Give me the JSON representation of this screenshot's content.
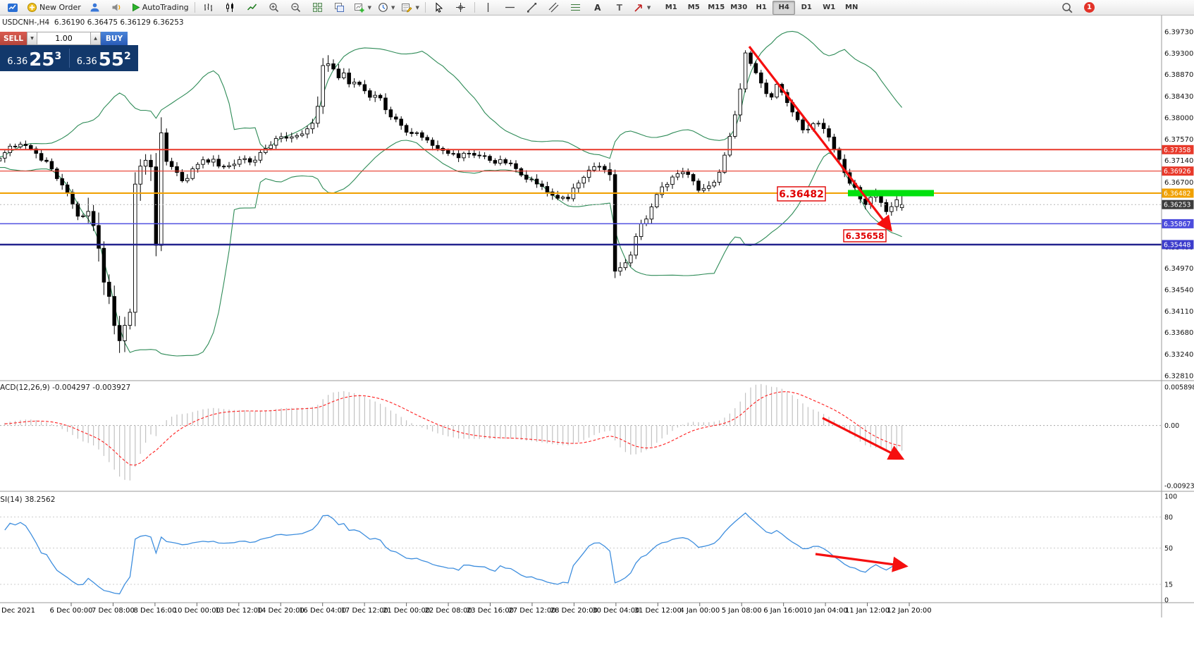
{
  "toolbar": {
    "new_order": "New Order",
    "autotrading": "AutoTrading",
    "timeframes": [
      "M1",
      "M5",
      "M15",
      "M30",
      "H1",
      "H4",
      "D1",
      "W1",
      "MN"
    ],
    "active_timeframe": "H4",
    "notification_badge": "1"
  },
  "chart_header": {
    "symbol_ohlc": "USDCNH-,H4  6.36190 6.36475 6.36129 6.36253"
  },
  "trade_panel": {
    "sell_label": "SELL",
    "buy_label": "BUY",
    "volume": "1.00",
    "sell_price": {
      "small": "6.36",
      "big": "25",
      "sup": "3"
    },
    "buy_price": {
      "small": "6.36",
      "big": "55",
      "sup": "2"
    }
  },
  "price_axis": {
    "ticks": [
      "6.39730",
      "6.39300",
      "6.38870",
      "6.38430",
      "6.38000",
      "6.37570",
      "6.37140",
      "6.36700",
      "6.36270",
      "6.35830",
      "6.35400",
      "6.34970",
      "6.34540",
      "6.34110",
      "6.33680",
      "6.33240",
      "6.32810"
    ],
    "tags": [
      {
        "label": "6.37358",
        "price": 6.37358,
        "bg": "#e8392a",
        "line_color": "#e8392a",
        "line_width": 2,
        "line_dash": ""
      },
      {
        "label": "6.36926",
        "price": 6.36926,
        "bg": "#e8392a",
        "line_color": "#e8392a",
        "line_width": 1.2,
        "line_dash": ""
      },
      {
        "label": "6.36482",
        "price": 6.36482,
        "bg": "#f0a000",
        "line_color": "#f0a000",
        "line_width": 2,
        "line_dash": ""
      },
      {
        "label": "6.36253",
        "price": 6.36253,
        "bg": "#3c3c3c",
        "line_color": "#b9b9b9",
        "line_width": 1,
        "line_dash": "2 3"
      },
      {
        "label": "6.35867",
        "price": 6.35867,
        "bg": "#4c4cdd",
        "line_color": "#5050e0",
        "line_width": 1.5,
        "line_dash": ""
      },
      {
        "label": "6.35448",
        "price": 6.35448,
        "bg": "#3c3ccc",
        "line_color": "#23238f",
        "line_width": 2.5,
        "line_dash": ""
      }
    ]
  },
  "macd_panel": {
    "label": "MACD(12,26,9) -0.004297 -0.003927",
    "axis": [
      "0.005898",
      "0.00",
      "-0.009232"
    ],
    "axis_values": [
      0.005898,
      0,
      -0.009232
    ]
  },
  "rsi_panel": {
    "label": "RSI(14) 38.2562",
    "axis": [
      "100",
      "80",
      "50",
      "15",
      "0"
    ],
    "axis_values": [
      100,
      80,
      50,
      15,
      0
    ]
  },
  "time_axis": {
    "labels": [
      "Dec 2021",
      "6 Dec 00:00",
      "7 Dec 08:00",
      "8 Dec 16:00",
      "10 Dec 00:00",
      "13 Dec 12:00",
      "14 Dec 20:00",
      "16 Dec 04:00",
      "17 Dec 12:00",
      "21 Dec 00:00",
      "22 Dec 08:00",
      "23 Dec 16:00",
      "27 Dec 12:00",
      "28 Dec 20:00",
      "30 Dec 04:00",
      "31 Dec 12:00",
      "4 Jan 00:00",
      "5 Jan 08:00",
      "6 Jan 16:00",
      "10 Jan 04:00",
      "11 Jan 12:00",
      "12 Jan 20:00"
    ]
  },
  "annotations": {
    "price_note_1": "6.36482",
    "price_note_2": "6.35658",
    "highlight_color": "#00e10e",
    "arrow_color": "#f50f0f",
    "note_color": "#e00000"
  },
  "chart_data": {
    "type": "candlestick+indicators",
    "symbol": "USDCNH-",
    "timeframe": "H4",
    "ohlc_current": {
      "open": 6.3619,
      "high": 6.36475,
      "low": 6.36129,
      "close": 6.36253
    },
    "current_bid": 6.36253,
    "levels": [
      6.37358,
      6.36926,
      6.36482,
      6.35867,
      6.35448
    ],
    "price_range_shown": [
      6.3281,
      6.3973
    ],
    "bollinger": {
      "period": 20,
      "deviation": 2
    },
    "macd": {
      "fast": 12,
      "slow": 26,
      "signal": 9,
      "current_main": -0.004297,
      "current_signal": -0.003927
    },
    "rsi": {
      "period": 14,
      "current": 38.2562
    },
    "colors": {
      "bollinger": "#2e8b57",
      "macd_histogram": "#c2c2c2",
      "macd_signal": "#ff1f1f",
      "rsi": "#3e8ede",
      "bull": "#ffffff",
      "bear": "#000000",
      "wick": "#000000"
    },
    "price_path_keyframes": [
      [
        -600,
        6.369
      ],
      [
        -480,
        6.3712
      ],
      [
        -360,
        6.3695
      ],
      [
        -240,
        6.3715
      ],
      [
        -150,
        6.37
      ],
      [
        -60,
        6.3712
      ],
      [
        0,
        6.3715
      ],
      [
        14,
        6.3738
      ],
      [
        28,
        6.3752
      ],
      [
        42,
        6.3735
      ],
      [
        56,
        6.3722
      ],
      [
        70,
        6.3705
      ],
      [
        84,
        6.3672
      ],
      [
        98,
        6.364
      ],
      [
        110,
        6.3605
      ],
      [
        120,
        6.3598
      ],
      [
        128,
        6.3618
      ],
      [
        136,
        6.3565
      ],
      [
        145,
        6.3488
      ],
      [
        153,
        6.3445
      ],
      [
        160,
        6.3412
      ],
      [
        167,
        6.3338
      ],
      [
        173,
        6.3365
      ],
      [
        180,
        6.3398
      ],
      [
        188,
        6.342
      ],
      [
        193,
        6.3748
      ],
      [
        200,
        6.3692
      ],
      [
        208,
        6.3718
      ],
      [
        216,
        6.37
      ],
      [
        221,
        6.3525
      ],
      [
        226,
        6.3838
      ],
      [
        232,
        6.3705
      ],
      [
        240,
        6.3712
      ],
      [
        250,
        6.3692
      ],
      [
        262,
        6.3665
      ],
      [
        272,
        6.3698
      ],
      [
        285,
        6.3712
      ],
      [
        300,
        6.3716
      ],
      [
        315,
        6.3702
      ],
      [
        330,
        6.3706
      ],
      [
        345,
        6.3716
      ],
      [
        360,
        6.3708
      ],
      [
        375,
        6.3736
      ],
      [
        390,
        6.3755
      ],
      [
        405,
        6.376
      ],
      [
        420,
        6.3766
      ],
      [
        435,
        6.3776
      ],
      [
        448,
        6.3792
      ],
      [
        457,
        6.39
      ],
      [
        463,
        6.3922
      ],
      [
        470,
        6.3902
      ],
      [
        478,
        6.3882
      ],
      [
        487,
        6.3892
      ],
      [
        496,
        6.3866
      ],
      [
        505,
        6.3876
      ],
      [
        515,
        6.386
      ],
      [
        525,
        6.3842
      ],
      [
        535,
        6.3852
      ],
      [
        545,
        6.3822
      ],
      [
        555,
        6.3802
      ],
      [
        565,
        6.3792
      ],
      [
        575,
        6.3776
      ],
      [
        588,
        6.377
      ],
      [
        600,
        6.3762
      ],
      [
        612,
        6.3746
      ],
      [
        625,
        6.374
      ],
      [
        638,
        6.373
      ],
      [
        650,
        6.372
      ],
      [
        662,
        6.373
      ],
      [
        675,
        6.3726
      ],
      [
        688,
        6.372
      ],
      [
        700,
        6.3712
      ],
      [
        715,
        6.3712
      ],
      [
        730,
        6.37
      ],
      [
        745,
        6.3682
      ],
      [
        760,
        6.367
      ],
      [
        775,
        6.3652
      ],
      [
        790,
        6.364
      ],
      [
        805,
        6.3634
      ],
      [
        815,
        6.3662
      ],
      [
        825,
        6.3672
      ],
      [
        838,
        6.3695
      ],
      [
        850,
        6.3702
      ],
      [
        860,
        6.3695
      ],
      [
        866,
        6.369
      ],
      [
        871,
        6.3482
      ],
      [
        877,
        6.3502
      ],
      [
        883,
        6.3494
      ],
      [
        889,
        6.3512
      ],
      [
        895,
        6.3522
      ],
      [
        901,
        6.356
      ],
      [
        908,
        6.358
      ],
      [
        915,
        6.3592
      ],
      [
        922,
        6.3612
      ],
      [
        930,
        6.364
      ],
      [
        938,
        6.3656
      ],
      [
        946,
        6.3662
      ],
      [
        955,
        6.368
      ],
      [
        963,
        6.3692
      ],
      [
        972,
        6.3696
      ],
      [
        980,
        6.3682
      ],
      [
        988,
        6.3656
      ],
      [
        996,
        6.366
      ],
      [
        1004,
        6.3662
      ],
      [
        1012,
        6.3666
      ],
      [
        1020,
        6.369
      ],
      [
        1028,
        6.3722
      ],
      [
        1036,
        6.3762
      ],
      [
        1044,
        6.3812
      ],
      [
        1050,
        6.3862
      ],
      [
        1057,
        6.394
      ],
      [
        1062,
        6.3918
      ],
      [
        1068,
        6.39
      ],
      [
        1074,
        6.3882
      ],
      [
        1080,
        6.387
      ],
      [
        1087,
        6.3852
      ],
      [
        1094,
        6.3842
      ],
      [
        1100,
        6.387
      ],
      [
        1107,
        6.3852
      ],
      [
        1114,
        6.384
      ],
      [
        1121,
        6.382
      ],
      [
        1128,
        6.3802
      ],
      [
        1135,
        6.379
      ],
      [
        1142,
        6.3772
      ],
      [
        1150,
        6.3782
      ],
      [
        1157,
        6.3796
      ],
      [
        1164,
        6.3782
      ],
      [
        1171,
        6.3776
      ],
      [
        1178,
        6.3752
      ],
      [
        1185,
        6.3732
      ],
      [
        1192,
        6.3712
      ],
      [
        1199,
        6.3686
      ],
      [
        1206,
        6.367
      ],
      [
        1213,
        6.3656
      ],
      [
        1220,
        6.364
      ],
      [
        1227,
        6.362
      ],
      [
        1234,
        6.3642
      ],
      [
        1241,
        6.3652
      ],
      [
        1248,
        6.3632
      ],
      [
        1255,
        6.3616
      ],
      [
        1262,
        6.3604
      ],
      [
        1269,
        6.3636
      ],
      [
        1276,
        6.3642
      ],
      [
        1282,
        6.3625
      ]
    ],
    "volatility_zones": [
      [
        118,
        180,
        3.2
      ],
      [
        186,
        234,
        3.4
      ],
      [
        448,
        468,
        2.0
      ],
      [
        862,
        884,
        3.0
      ],
      [
        1048,
        1064,
        1.8
      ]
    ]
  }
}
